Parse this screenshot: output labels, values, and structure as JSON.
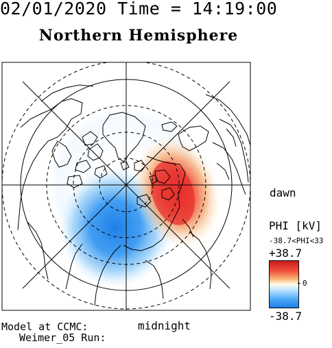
{
  "header": {
    "datetime": "02/01/2020 Time = 14:19:00",
    "title": "Northern Hemisphere"
  },
  "labels": {
    "dawn": "dawn",
    "midnight": "midnight",
    "model_line1": "Model at CCMC:",
    "model_line2": "Weimer_05 Run:"
  },
  "colorbar": {
    "quantity": "PHI [kV]",
    "range_text": "-38.7<PHI<33",
    "max_label": "+38.7",
    "min_label": "-38.7",
    "zero_label": "0",
    "max_value": 38.7,
    "min_value": -38.7,
    "colors": {
      "max": "#c81e1e",
      "zero": "#fffbe8",
      "min": "#1e7fe8"
    }
  },
  "map": {
    "projection": "polar stereographic, north pole centered",
    "noon_direction": "top",
    "dawn_direction": "right",
    "midnight_direction": "bottom"
  }
}
